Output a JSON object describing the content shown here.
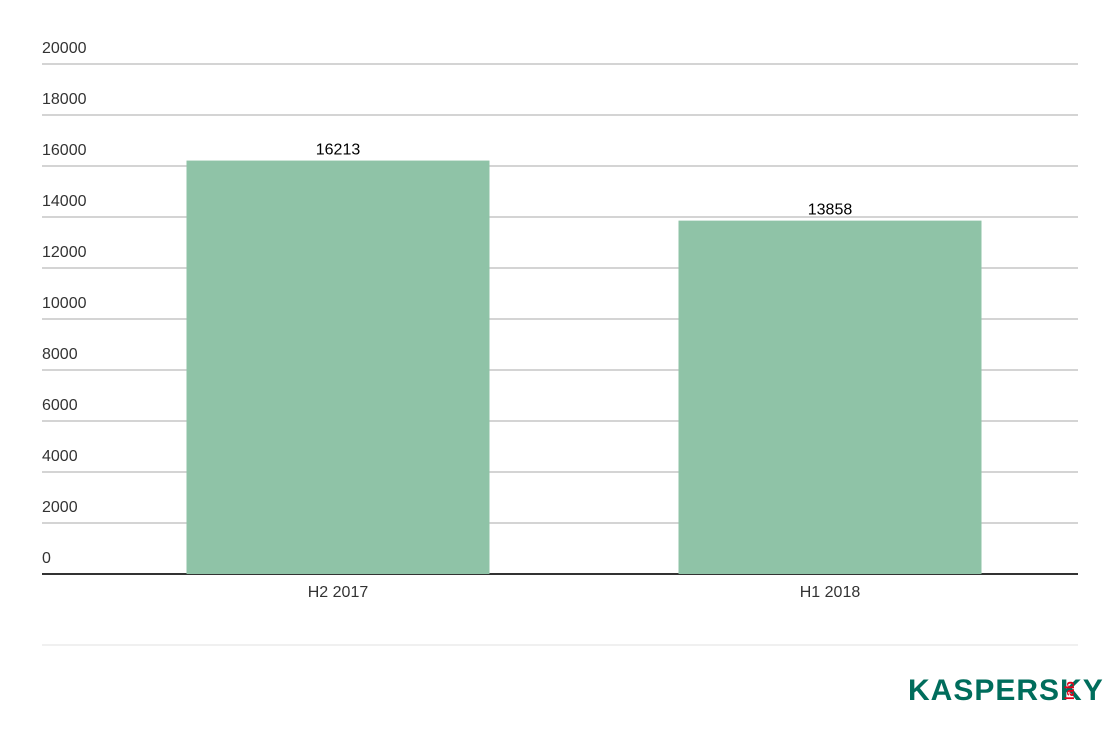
{
  "chart_data": {
    "type": "bar",
    "categories": [
      "H2 2017",
      "H1 2018"
    ],
    "values": [
      16213,
      13858
    ],
    "color": "#8fc3a7",
    "ylim": [
      0,
      20000
    ],
    "yticks": [
      0,
      2000,
      4000,
      6000,
      8000,
      10000,
      12000,
      14000,
      16000,
      18000,
      20000
    ],
    "grid": true
  },
  "logo": {
    "brand": "KASPERSKY",
    "suffix": "lab"
  }
}
